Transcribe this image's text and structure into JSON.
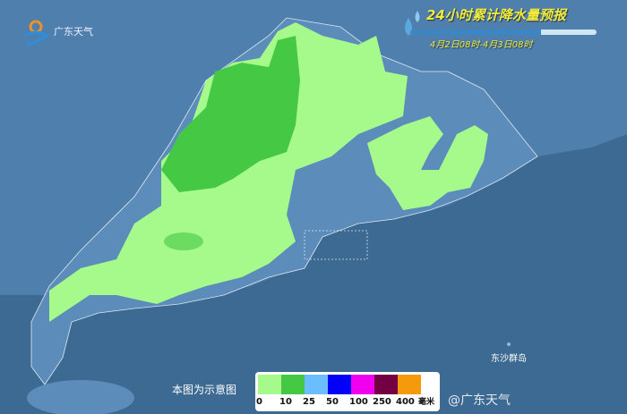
{
  "header": {
    "title": "24小时累计降水量预报",
    "subtitle": "4月2日08时-4月3日08时"
  },
  "logo": {
    "text": "广东天气"
  },
  "note": "本图为示意图",
  "watermark": "@广东天气",
  "island_label": "东沙群岛",
  "legend": {
    "colors": [
      "#a6f98b",
      "#45c843",
      "#6cbdfd",
      "#0200f9",
      "#f100f0",
      "#730042",
      "#f59a0d"
    ],
    "labels": [
      "0",
      "10",
      "25",
      "50",
      "100",
      "250",
      "400"
    ],
    "unit": "毫米"
  },
  "colors": {
    "sea": "#3d6a93",
    "land": "#4a7aa8",
    "rain_light": "#a6f98b",
    "rain_moderate": "#45c843"
  }
}
